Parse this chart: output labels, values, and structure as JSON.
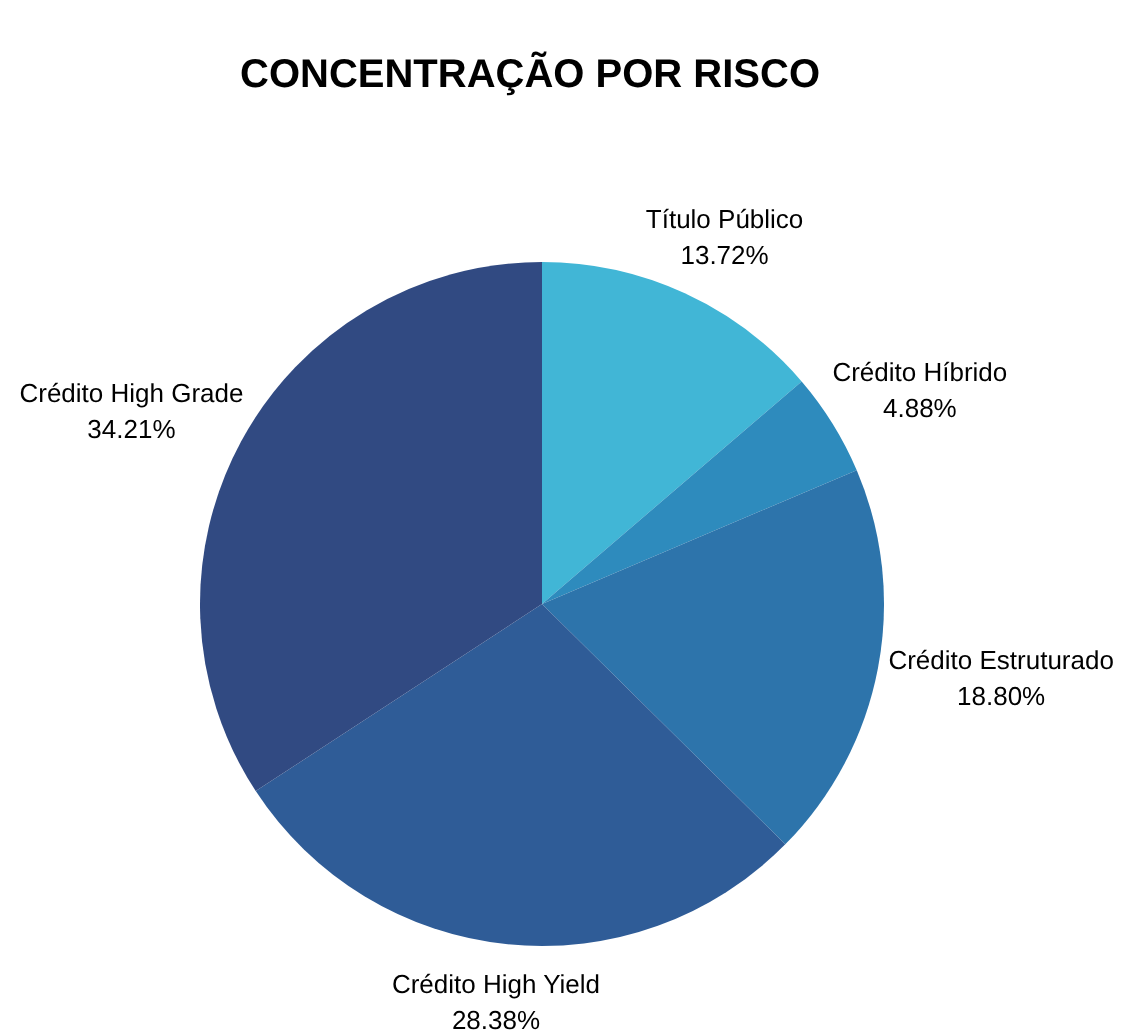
{
  "chart_data": {
    "type": "pie",
    "title": "CONCENTRAÇÃO POR RISCO",
    "categories": [
      "Título Público",
      "Crédito Híbrido",
      "Crédito Estruturado",
      "Crédito High Yield",
      "Crédito High Grade"
    ],
    "values": [
      13.72,
      4.88,
      18.8,
      28.38,
      34.21
    ],
    "colors": [
      "#41b6d6",
      "#2e8bbd",
      "#2d74ab",
      "#2f5c97",
      "#314a82"
    ],
    "value_labels": [
      "13.72%",
      "4.88%",
      "18.80%",
      "28.38%",
      "34.21%"
    ],
    "legend": false
  }
}
